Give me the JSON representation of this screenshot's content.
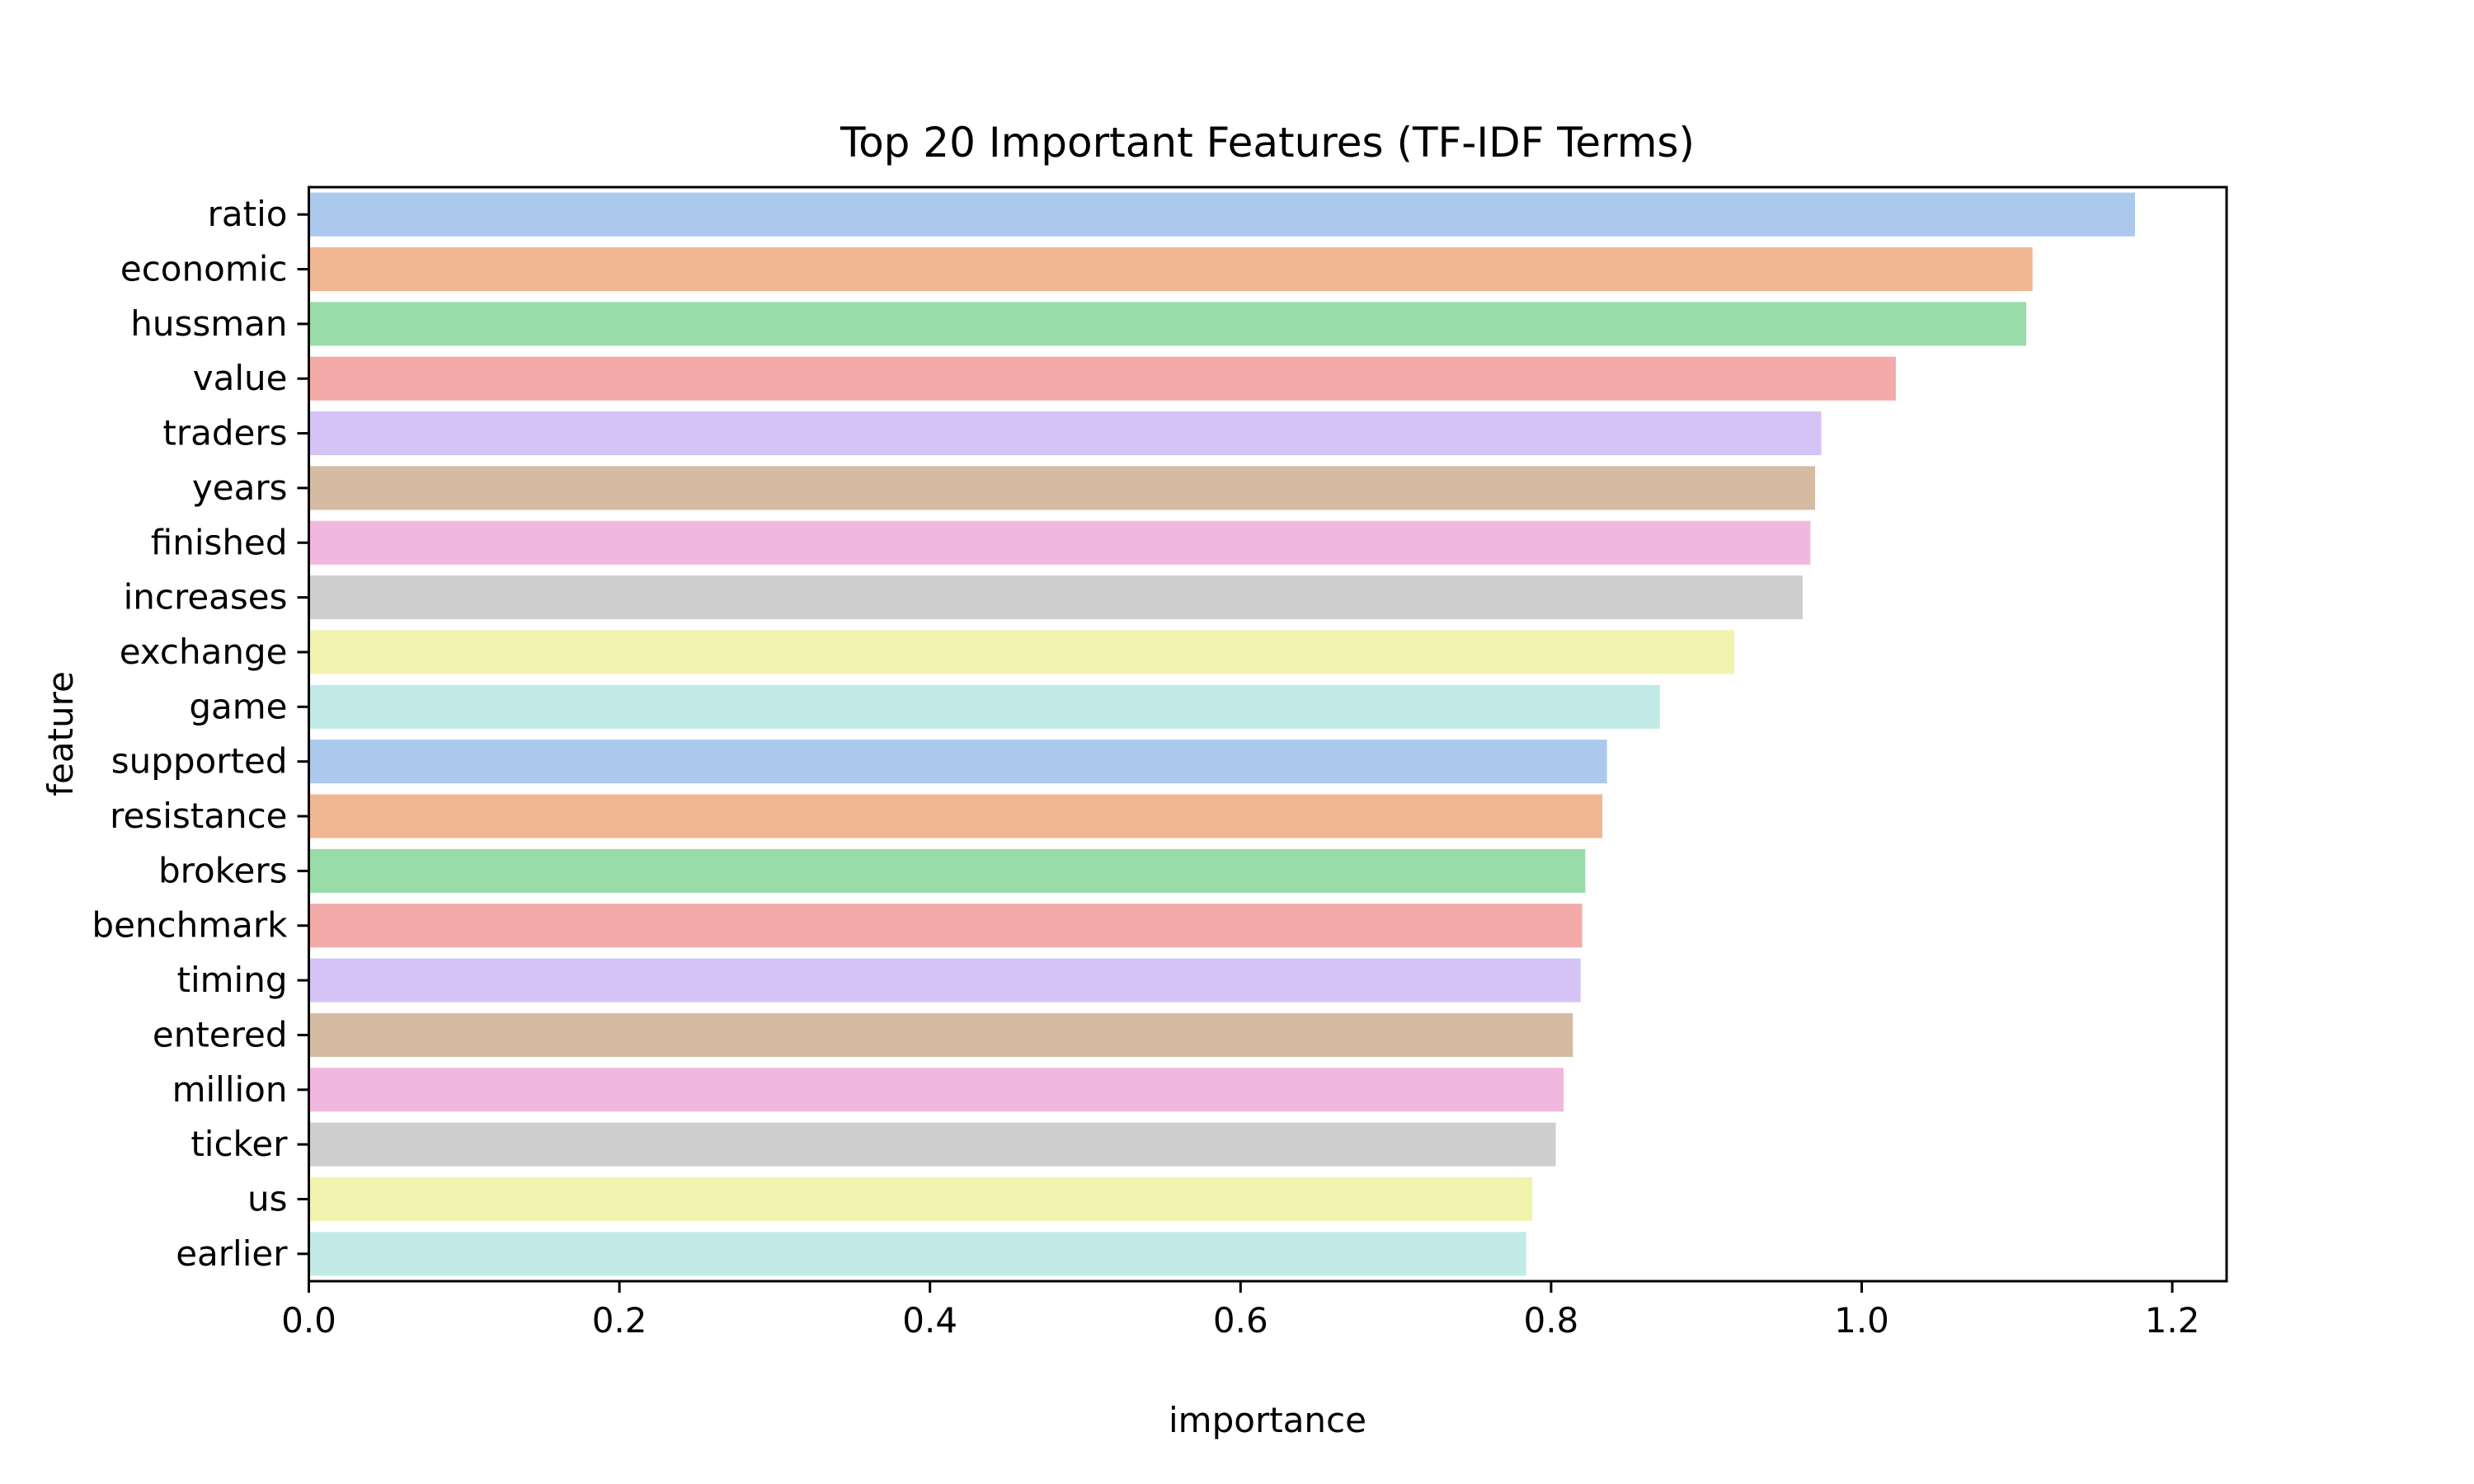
{
  "chart_data": {
    "type": "bar",
    "orientation": "horizontal",
    "title": "Top 20 Important Features (TF-IDF Terms)",
    "xlabel": "importance",
    "ylabel": "feature",
    "xlim": [
      0,
      1.235
    ],
    "xticks": [
      0.0,
      0.2,
      0.4,
      0.6,
      0.8,
      1.0,
      1.2
    ],
    "xtick_labels": [
      "0.0",
      "0.2",
      "0.4",
      "0.6",
      "0.8",
      "1.0",
      "1.2"
    ],
    "grid": false,
    "categories": [
      "ratio",
      "economic",
      "hussman",
      "value",
      "traders",
      "years",
      "finished",
      "increases",
      "exchange",
      "game",
      "supported",
      "resistance",
      "brokers",
      "benchmark",
      "timing",
      "entered",
      "million",
      "ticker",
      "us",
      "earlier"
    ],
    "values": [
      1.176,
      1.11,
      1.106,
      1.022,
      0.974,
      0.97,
      0.967,
      0.962,
      0.918,
      0.87,
      0.836,
      0.833,
      0.822,
      0.82,
      0.819,
      0.814,
      0.808,
      0.803,
      0.788,
      0.784
    ],
    "colors": [
      "#abc9ec",
      "#f1b792",
      "#99dba9",
      "#f2aba9",
      "#d5c3f6",
      "#d5bba1",
      "#f0b8df",
      "#cecece",
      "#f3f3b0",
      "#c1eae7"
    ]
  }
}
